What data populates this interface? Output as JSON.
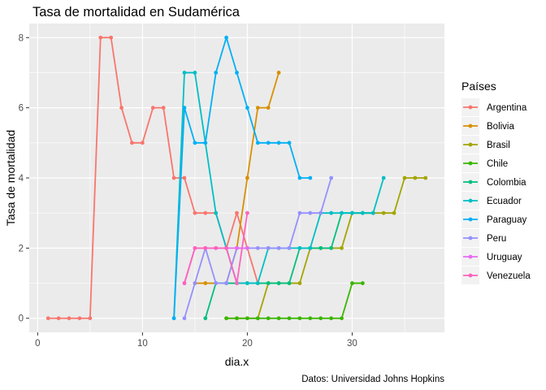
{
  "chart_data": {
    "type": "line",
    "title": "Tasa de mortalidad en Sudamérica",
    "xlabel": "dia.x",
    "ylabel": "Tasa de mortalidad",
    "caption": "Datos: Universidad Johns Hopkins",
    "legend_title": "Países",
    "legend_position": "right",
    "grid": true,
    "xlim": [
      -0.8,
      38.8
    ],
    "ylim": [
      -0.4,
      8.4
    ],
    "x_ticks": [
      0,
      10,
      20,
      30
    ],
    "y_ticks": [
      0,
      2,
      4,
      6,
      8
    ],
    "series": [
      {
        "name": "Argentina",
        "color": "#F8766D",
        "points": [
          [
            1,
            0
          ],
          [
            2,
            0
          ],
          [
            3,
            0
          ],
          [
            4,
            0
          ],
          [
            5,
            0
          ],
          [
            6,
            8
          ],
          [
            7,
            8
          ],
          [
            8,
            6
          ],
          [
            9,
            5
          ],
          [
            10,
            5
          ],
          [
            11,
            6
          ],
          [
            12,
            6
          ],
          [
            13,
            4
          ],
          [
            14,
            4
          ],
          [
            15,
            3
          ],
          [
            16,
            3
          ],
          [
            17,
            3
          ],
          [
            18,
            2
          ],
          [
            19,
            3
          ],
          [
            20,
            2
          ],
          [
            21,
            1
          ]
        ]
      },
      {
        "name": "Bolivia",
        "color": "#D89000",
        "points": [
          [
            15,
            1
          ],
          [
            16,
            1
          ],
          [
            17,
            1
          ],
          [
            18,
            1
          ],
          [
            19,
            2
          ],
          [
            20,
            4
          ],
          [
            21,
            6
          ],
          [
            22,
            6
          ],
          [
            23,
            7
          ]
        ]
      },
      {
        "name": "Brasil",
        "color": "#A3A500",
        "points": [
          [
            18,
            0
          ],
          [
            19,
            0
          ],
          [
            20,
            0
          ],
          [
            21,
            0
          ],
          [
            22,
            1
          ],
          [
            23,
            1
          ],
          [
            24,
            1
          ],
          [
            25,
            1
          ],
          [
            26,
            2
          ],
          [
            27,
            2
          ],
          [
            28,
            2
          ],
          [
            29,
            2
          ],
          [
            30,
            3
          ],
          [
            31,
            3
          ],
          [
            32,
            3
          ],
          [
            33,
            3
          ],
          [
            34,
            3
          ],
          [
            35,
            4
          ],
          [
            36,
            4
          ],
          [
            37,
            4
          ]
        ]
      },
      {
        "name": "Chile",
        "color": "#39B600",
        "points": [
          [
            18,
            0
          ],
          [
            19,
            0
          ],
          [
            20,
            0
          ],
          [
            21,
            0
          ],
          [
            22,
            0
          ],
          [
            23,
            0
          ],
          [
            24,
            0
          ],
          [
            25,
            0
          ],
          [
            26,
            0
          ],
          [
            27,
            0
          ],
          [
            28,
            0
          ],
          [
            29,
            0
          ],
          [
            30,
            1
          ],
          [
            31,
            1
          ]
        ]
      },
      {
        "name": "Colombia",
        "color": "#00BF7D",
        "points": [
          [
            16,
            0
          ],
          [
            17,
            1
          ],
          [
            18,
            1
          ],
          [
            19,
            1
          ],
          [
            20,
            1
          ],
          [
            21,
            1
          ],
          [
            22,
            1
          ],
          [
            23,
            1
          ],
          [
            24,
            1
          ],
          [
            25,
            2
          ],
          [
            26,
            2
          ],
          [
            27,
            2
          ],
          [
            28,
            2
          ],
          [
            29,
            3
          ],
          [
            30,
            3
          ],
          [
            31,
            3
          ],
          [
            32,
            3
          ]
        ]
      },
      {
        "name": "Ecuador",
        "color": "#00BFC4",
        "points": [
          [
            13,
            0
          ],
          [
            14,
            7
          ],
          [
            15,
            7
          ],
          [
            16,
            5
          ],
          [
            17,
            3
          ],
          [
            18,
            2
          ],
          [
            19,
            1
          ],
          [
            20,
            1
          ],
          [
            21,
            1
          ],
          [
            22,
            2
          ],
          [
            23,
            2
          ],
          [
            24,
            2
          ],
          [
            25,
            2
          ],
          [
            26,
            2
          ],
          [
            27,
            3
          ],
          [
            28,
            3
          ],
          [
            29,
            3
          ],
          [
            30,
            3
          ],
          [
            31,
            3
          ],
          [
            32,
            3
          ],
          [
            33,
            4
          ]
        ]
      },
      {
        "name": "Paraguay",
        "color": "#00B0F6",
        "points": [
          [
            13,
            0
          ],
          [
            14,
            6
          ],
          [
            15,
            5
          ],
          [
            16,
            5
          ],
          [
            17,
            7
          ],
          [
            18,
            8
          ],
          [
            19,
            7
          ],
          [
            20,
            6
          ],
          [
            21,
            5
          ],
          [
            22,
            5
          ],
          [
            23,
            5
          ],
          [
            24,
            5
          ],
          [
            25,
            4
          ],
          [
            26,
            4
          ]
        ]
      },
      {
        "name": "Peru",
        "color": "#9590FF",
        "points": [
          [
            14,
            0
          ],
          [
            15,
            1
          ],
          [
            16,
            2
          ],
          [
            17,
            1
          ],
          [
            18,
            1
          ],
          [
            19,
            2
          ],
          [
            20,
            2
          ],
          [
            21,
            2
          ],
          [
            22,
            2
          ],
          [
            23,
            2
          ],
          [
            24,
            2
          ],
          [
            25,
            3
          ],
          [
            26,
            3
          ],
          [
            27,
            3
          ],
          [
            28,
            4
          ]
        ]
      },
      {
        "name": "Uruguay",
        "color": "#E76BF3",
        "points": [
          [
            14,
            1
          ],
          [
            15,
            2
          ],
          [
            16,
            2
          ],
          [
            17,
            2
          ],
          [
            18,
            2
          ],
          [
            19,
            2
          ],
          [
            20,
            2
          ]
        ]
      },
      {
        "name": "Venezuela",
        "color": "#FF62BC",
        "points": [
          [
            14,
            1
          ],
          [
            15,
            2
          ],
          [
            16,
            2
          ],
          [
            17,
            2
          ],
          [
            18,
            2
          ],
          [
            19,
            1
          ],
          [
            20,
            3
          ]
        ]
      }
    ]
  }
}
